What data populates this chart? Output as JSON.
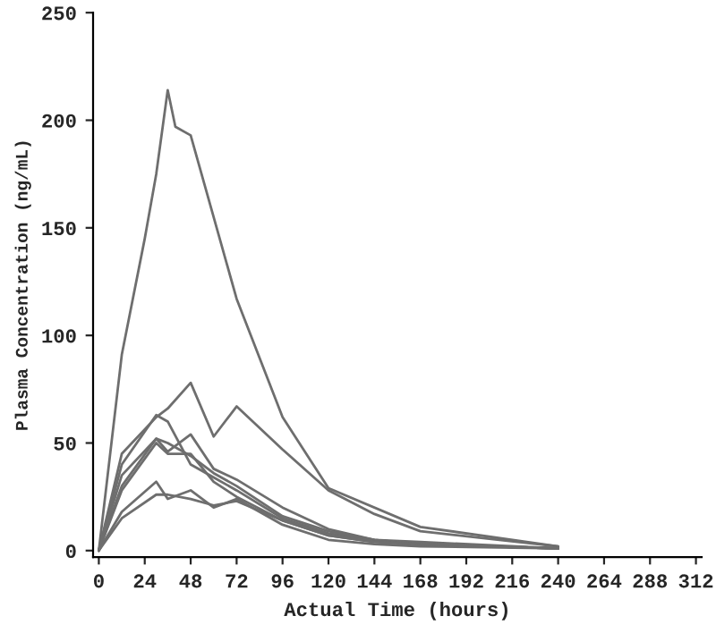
{
  "chart_data": {
    "type": "line",
    "xlabel": "Actual Time (hours)",
    "ylabel": "Plasma Concentration (ng/mL)",
    "xlim": [
      -3,
      315
    ],
    "ylim": [
      -3,
      250
    ],
    "xticks": [
      0,
      24,
      48,
      72,
      96,
      120,
      144,
      168,
      192,
      216,
      240,
      264,
      288,
      312
    ],
    "yticks": [
      0,
      50,
      100,
      150,
      200,
      250
    ],
    "grid": false,
    "legend": false,
    "marker": "none",
    "line_style": "solid",
    "series": [
      {
        "color": "#6e6e6e",
        "x": [
          0,
          12,
          24,
          30,
          36,
          40,
          48,
          72,
          96,
          120,
          168,
          240
        ],
        "values": [
          0,
          91,
          145,
          175,
          214,
          197,
          193,
          117,
          62,
          29,
          11,
          2
        ]
      },
      {
        "color": "#6e6e6e",
        "x": [
          0,
          12,
          30,
          36,
          48,
          60,
          72,
          96,
          120,
          144,
          168,
          240
        ],
        "values": [
          0,
          45,
          62,
          66,
          78,
          53,
          67,
          47,
          28,
          17,
          9,
          2
        ]
      },
      {
        "color": "#6e6e6e",
        "x": [
          0,
          12,
          30,
          36,
          48,
          60,
          72,
          96,
          120,
          144,
          168,
          240
        ],
        "values": [
          0,
          40,
          63,
          60,
          40,
          34,
          28,
          15,
          8,
          5,
          3,
          1
        ]
      },
      {
        "color": "#6e6e6e",
        "x": [
          0,
          12,
          30,
          36,
          48,
          60,
          72,
          96,
          120,
          144,
          168,
          240
        ],
        "values": [
          0,
          30,
          52,
          46,
          54,
          38,
          33,
          20,
          10,
          5,
          4,
          1
        ]
      },
      {
        "color": "#6e6e6e",
        "x": [
          0,
          12,
          30,
          36,
          48,
          60,
          72,
          96,
          120,
          144,
          168,
          240
        ],
        "values": [
          0,
          35,
          52,
          50,
          44,
          36,
          30,
          16,
          9,
          5,
          3,
          1
        ]
      },
      {
        "color": "#6e6e6e",
        "x": [
          0,
          12,
          30,
          36,
          48,
          60,
          72,
          96,
          120,
          144,
          168,
          240
        ],
        "values": [
          0,
          28,
          50,
          45,
          45,
          32,
          25,
          14,
          7,
          4,
          3,
          1
        ]
      },
      {
        "color": "#6e6e6e",
        "x": [
          0,
          12,
          30,
          36,
          48,
          60,
          72,
          96,
          120,
          144,
          168,
          240
        ],
        "values": [
          0,
          18,
          32,
          24,
          28,
          20,
          24,
          12,
          5,
          3,
          2,
          1
        ]
      },
      {
        "color": "#6e6e6e",
        "x": [
          0,
          12,
          30,
          36,
          48,
          60,
          72,
          96,
          120,
          144,
          168,
          240
        ],
        "values": [
          0,
          15,
          26,
          26,
          24,
          21,
          23,
          14,
          7,
          4,
          3,
          1
        ]
      }
    ]
  }
}
